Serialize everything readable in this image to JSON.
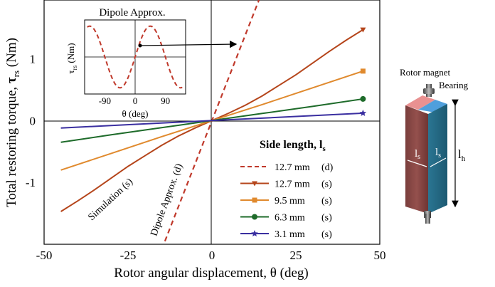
{
  "chart_data": [
    {
      "type": "line",
      "xlabel": "Rotor angular displacement, θ (deg)",
      "ylabel_prefix": "Total restoring torque, ",
      "ylabel_symbol": "τ",
      "ylabel_subscript": "rs",
      "ylabel_unit": " (Nm)",
      "xlim": [
        -50,
        50
      ],
      "ylim": [
        -2.0,
        1.95
      ],
      "xticks": [
        -50,
        -25,
        0,
        25,
        50
      ],
      "yticks": [
        1,
        0,
        -1
      ],
      "legend_title_main": "Side length, l",
      "legend_title_sub": "s",
      "legend_placement": "lower-right",
      "series": [
        {
          "name": "12.7 mm",
          "mode": "(d)",
          "color": "#c0392b",
          "dash": true,
          "marker": "none",
          "x": [
            -14,
            14
          ],
          "y": [
            -1.95,
            1.95
          ]
        },
        {
          "name": "12.7 mm",
          "mode": "(s)",
          "color": "#b5451b",
          "dash": false,
          "marker": "triangle-down",
          "x": [
            -45,
            -40,
            -35,
            -30,
            -25,
            -20,
            -15,
            -10,
            -5,
            0,
            5,
            10,
            15,
            20,
            25,
            30,
            35,
            40,
            45
          ],
          "y": [
            -1.47,
            -1.3,
            -1.12,
            -0.93,
            -0.74,
            -0.57,
            -0.4,
            -0.25,
            -0.12,
            0,
            0.12,
            0.25,
            0.4,
            0.57,
            0.74,
            0.93,
            1.12,
            1.3,
            1.47
          ]
        },
        {
          "name": "9.5 mm",
          "mode": "(s)",
          "color": "#e08a2e",
          "dash": false,
          "marker": "square",
          "x": [
            -45,
            -30,
            -15,
            0,
            15,
            30,
            45
          ],
          "y": [
            -0.8,
            -0.53,
            -0.26,
            0,
            0.26,
            0.53,
            0.8
          ]
        },
        {
          "name": "6.3 mm",
          "mode": "(s)",
          "color": "#1e6b2a",
          "dash": false,
          "marker": "circle",
          "x": [
            -45,
            -30,
            -15,
            0,
            15,
            30,
            45
          ],
          "y": [
            -0.35,
            -0.23,
            -0.115,
            0,
            0.115,
            0.23,
            0.35
          ]
        },
        {
          "name": "3.1 mm",
          "mode": "(s)",
          "color": "#3a2fa0",
          "dash": false,
          "marker": "star",
          "x": [
            -45,
            -30,
            -15,
            0,
            15,
            30,
            45
          ],
          "y": [
            -0.12,
            -0.08,
            -0.04,
            0,
            0.04,
            0.08,
            0.12
          ]
        }
      ],
      "annotations": [
        "Simulation (s)",
        "Dipole Approx. (d)"
      ]
    },
    {
      "type": "line",
      "title": "Dipole Approx.",
      "xlabel": "θ (deg)",
      "ylabel_symbol": "τ",
      "ylabel_subscript": "rs",
      "ylabel_unit": " (Nm)",
      "xlim": [
        -150,
        150
      ],
      "ylim": [
        -1.2,
        1.2
      ],
      "xticks": [
        -90,
        0,
        90
      ],
      "series": [
        {
          "color": "#c0392b",
          "dash": true,
          "function": "sin(2θ)",
          "amplitude": 1
        }
      ]
    }
  ],
  "diagram": {
    "rotor_magnet_label": "Rotor magnet",
    "bearing_label": "Bearing",
    "ls_label_main": "l",
    "ls_label_sub": "s",
    "lh_label_main": "l",
    "lh_label_sub": "h",
    "colors": {
      "front": "#8b4a48",
      "side": "#2c7f9a",
      "top_left": "#e88a8a",
      "top_right": "#4fa0dc"
    }
  }
}
